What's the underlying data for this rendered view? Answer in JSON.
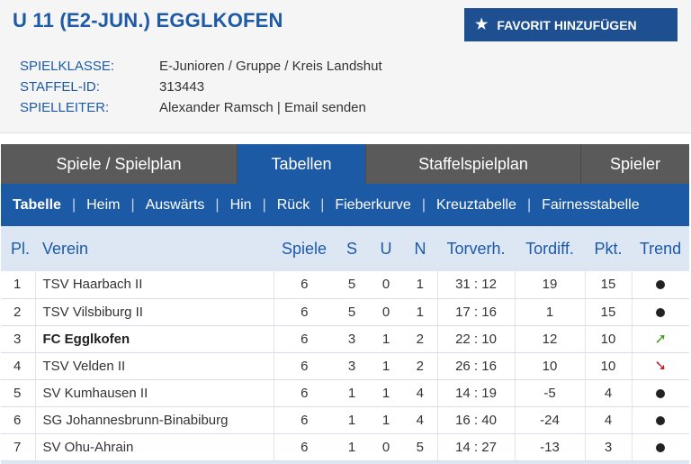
{
  "header": {
    "title": "U 11 (E2-JUN.) EGGLKOFEN",
    "favorite_label": "FAVORIT HINZUFÜGEN",
    "info": {
      "spielklasse_label": "SPIELKLASSE:",
      "spielklasse_value": "E-Junioren / Gruppe / Kreis Landshut",
      "staffel_label": "STAFFEL-ID:",
      "staffel_value": "313443",
      "spielleiter_label": "SPIELLEITER:",
      "spielleiter_name": "Alexander Ramsch",
      "spielleiter_separator": "|",
      "spielleiter_email": "Email senden"
    }
  },
  "tabs": [
    {
      "label": "Spiele / Spielplan"
    },
    {
      "label": "Tabellen"
    },
    {
      "label": "Staffelspielplan"
    },
    {
      "label": "Spieler"
    }
  ],
  "subnav": [
    {
      "label": "Tabelle"
    },
    {
      "label": "Heim"
    },
    {
      "label": "Auswärts"
    },
    {
      "label": "Hin"
    },
    {
      "label": "Rück"
    },
    {
      "label": "Fieberkurve"
    },
    {
      "label": "Kreuztabelle"
    },
    {
      "label": "Fairnesstabelle"
    }
  ],
  "subnav_separator": "|",
  "table": {
    "headers": {
      "pl": "Pl.",
      "verein": "Verein",
      "spiele": "Spiele",
      "s": "S",
      "u": "U",
      "n": "N",
      "torverh": "Torverh.",
      "tordiff": "Tordiff.",
      "pkt": "Pkt.",
      "trend": "Trend"
    },
    "rows": [
      {
        "pl": "1",
        "verein": "TSV Haarbach II",
        "spiele": "6",
        "s": "5",
        "u": "0",
        "n": "1",
        "torverh": "31 : 12",
        "tordiff": "19",
        "pkt": "15",
        "trend": "dot-icon"
      },
      {
        "pl": "2",
        "verein": "TSV Vilsbiburg II",
        "spiele": "6",
        "s": "5",
        "u": "0",
        "n": "1",
        "torverh": "17 : 16",
        "tordiff": "1",
        "pkt": "15",
        "trend": "dot-icon"
      },
      {
        "pl": "3",
        "verein": "FC Egglkofen",
        "spiele": "6",
        "s": "3",
        "u": "1",
        "n": "2",
        "torverh": "22 : 10",
        "tordiff": "12",
        "pkt": "10",
        "trend": "arrow-up-right-icon"
      },
      {
        "pl": "4",
        "verein": "TSV Velden II",
        "spiele": "6",
        "s": "3",
        "u": "1",
        "n": "2",
        "torverh": "26 : 16",
        "tordiff": "10",
        "pkt": "10",
        "trend": "arrow-down-right-icon"
      },
      {
        "pl": "5",
        "verein": "SV Kumhausen II",
        "spiele": "6",
        "s": "1",
        "u": "1",
        "n": "4",
        "torverh": "14 : 19",
        "tordiff": "-5",
        "pkt": "4",
        "trend": "dot-icon"
      },
      {
        "pl": "6",
        "verein": "SG Johannesbrunn-Binabiburg",
        "spiele": "6",
        "s": "1",
        "u": "1",
        "n": "4",
        "torverh": "16 : 40",
        "tordiff": "-24",
        "pkt": "4",
        "trend": "dot-icon"
      },
      {
        "pl": "7",
        "verein": "SV Ohu-Ahrain",
        "spiele": "6",
        "s": "1",
        "u": "0",
        "n": "5",
        "torverh": "14 : 27",
        "tordiff": "-13",
        "pkt": "3",
        "trend": "dot-icon"
      }
    ]
  },
  "colors": {
    "brand_blue": "#1d5aa5",
    "button_blue": "#1d4f91",
    "tab_gray": "#5a5a5a",
    "trend_up": "#4c9a2a",
    "trend_down": "#c0202a"
  }
}
